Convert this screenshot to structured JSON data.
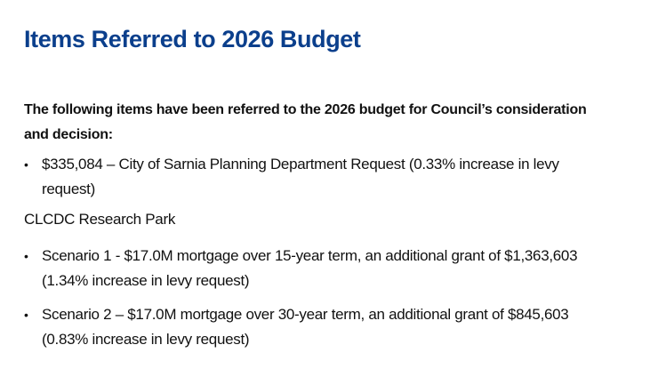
{
  "slide": {
    "title": "Items Referred to 2026 Budget",
    "intro": "The following items have been referred to the 2026 budget for Council’s consideration and decision:",
    "items": [
      {
        "bullet": "•",
        "text": "$335,084 – City of Sarnia Planning Department Request  (0.33% increase in levy request)"
      }
    ],
    "section_heading": "CLCDC Research Park",
    "scenarios": [
      {
        "bullet": "•",
        "text": "Scenario 1 - $17.0M mortgage over 15-year term, an additional grant of $1,363,603 (1.34% increase in levy request)"
      },
      {
        "bullet": "•",
        "text": "Scenario 2 – $17.0M mortgage over 30-year term, an additional grant of $845,603 (0.83% increase in levy request)"
      }
    ]
  },
  "colors": {
    "title": "#0b3f8c",
    "text": "#111111",
    "background": "#ffffff"
  }
}
